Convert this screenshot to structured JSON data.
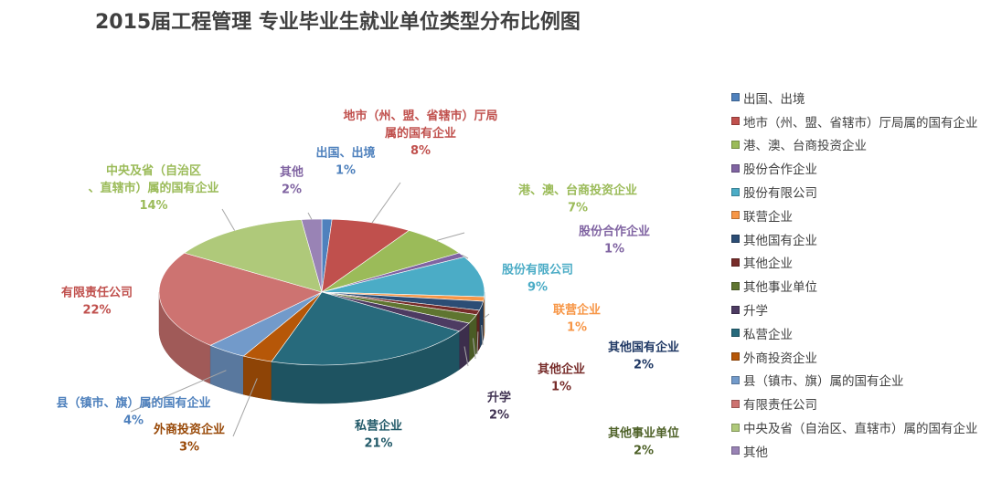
{
  "chart_data": {
    "type": "pie",
    "title": "2015届工程管理 专业毕业生就业单位类型分布比例图",
    "legend_position": "right",
    "slices": [
      {
        "label": "出国、出境",
        "legend": "出国、出境",
        "value": 1,
        "pct_text": "1%",
        "color": "#4f81bd"
      },
      {
        "label": "地市（州、盟、省辖市）厅局属的国有企业",
        "legend": "地市（州、盟、省辖市）厅局属的国有企业",
        "value": 8,
        "pct_text": "8%",
        "color": "#c0504d"
      },
      {
        "label": "港、澳、台商投资企业",
        "legend": "港、澳、台商投资企业",
        "value": 7,
        "pct_text": "7%",
        "color": "#9bbb59"
      },
      {
        "label": "股份合作企业",
        "legend": "股份合作企业",
        "value": 1,
        "pct_text": "1%",
        "color": "#8064a2"
      },
      {
        "label": "股份有限公司",
        "legend": "股份有限公司",
        "value": 9,
        "pct_text": "9%",
        "color": "#4bacc6"
      },
      {
        "label": "联营企业",
        "legend": "联营企业",
        "value": 1,
        "pct_text": "1%",
        "color": "#f79646"
      },
      {
        "label": "其他国有企业",
        "legend": "其他国有企业",
        "value": 2,
        "pct_text": "2%",
        "color": "#2c4d75"
      },
      {
        "label": "其他企业",
        "legend": "其他企业",
        "value": 1,
        "pct_text": "1%",
        "color": "#772c2a"
      },
      {
        "label": "其他事业单位",
        "legend": "其他事业单位",
        "value": 2,
        "pct_text": "2%",
        "color": "#5f7530"
      },
      {
        "label": "升学",
        "legend": "升学",
        "value": 2,
        "pct_text": "2%",
        "color": "#4d3b62"
      },
      {
        "label": "私营企业",
        "legend": "私营企业",
        "value": 21,
        "pct_text": "21%",
        "color": "#276a7c"
      },
      {
        "label": "外商投资企业",
        "legend": "外商投资企业",
        "value": 3,
        "pct_text": "3%",
        "color": "#b65708"
      },
      {
        "label": "县（镇市、旗）属的国有企业",
        "legend": "县（镇市、旗）属的国有企业",
        "value": 4,
        "pct_text": "4%",
        "color": "#729aca"
      },
      {
        "label": "有限责任公司",
        "legend": "有限责任公司",
        "value": 22,
        "pct_text": "22%",
        "color": "#cd7371"
      },
      {
        "label": "中央及省（自治区、直辖市）属的国有企业",
        "legend": "中央及省（自治区、直辖市）属的国有企业",
        "value": 14,
        "pct_text": "14%",
        "color": "#afc97a"
      },
      {
        "label": "其他",
        "legend": "其他",
        "value": 2,
        "pct_text": "2%",
        "color": "#9983b5"
      }
    ]
  }
}
